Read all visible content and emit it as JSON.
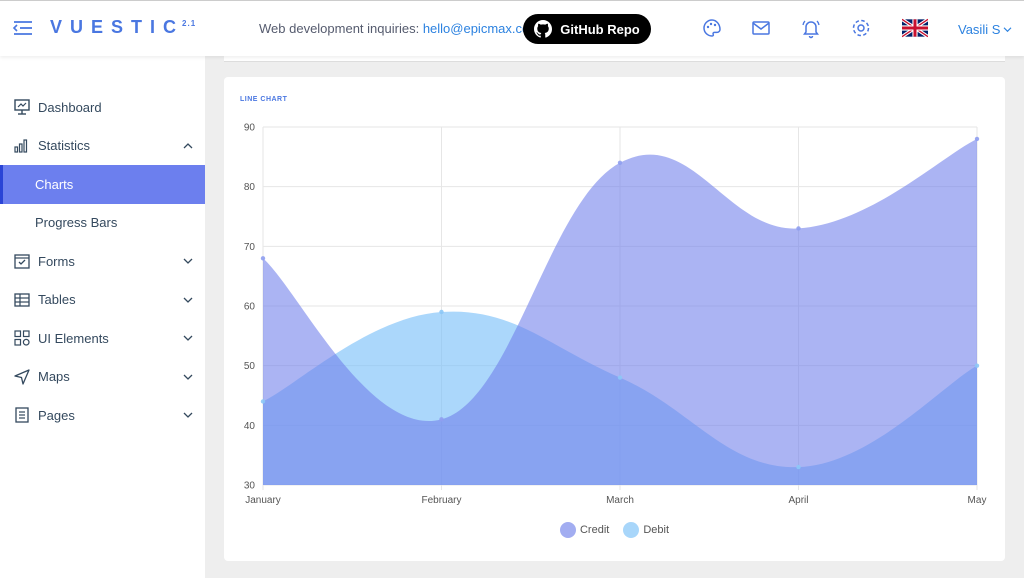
{
  "brand": {
    "name": "VUESTIC",
    "version": "2.1"
  },
  "header": {
    "inquiries_label": "Web development inquiries:",
    "inquiries_email": "hello@epicmax.co",
    "github_label": "GitHub Repo",
    "user_name": "Vasili S",
    "icons": [
      "palette-icon",
      "mail-icon",
      "bell-icon",
      "gear-icon",
      "uk-flag-icon"
    ]
  },
  "sidebar": {
    "items": [
      {
        "label": "Dashboard",
        "icon": "dashboard-icon"
      },
      {
        "label": "Statistics",
        "icon": "statistics-icon",
        "expanded": true
      },
      {
        "label": "Charts",
        "active": true
      },
      {
        "label": "Progress Bars"
      },
      {
        "label": "Forms",
        "icon": "forms-icon"
      },
      {
        "label": "Tables",
        "icon": "tables-icon"
      },
      {
        "label": "UI Elements",
        "icon": "ui-elements-icon"
      },
      {
        "label": "Maps",
        "icon": "maps-icon"
      },
      {
        "label": "Pages",
        "icon": "pages-icon"
      }
    ],
    "active_color": "#6c7fee"
  },
  "card": {
    "title": "LINE CHART"
  },
  "chart_data": {
    "type": "area",
    "title": "",
    "categories": [
      "January",
      "February",
      "March",
      "April",
      "May"
    ],
    "series": [
      {
        "name": "Credit",
        "values": [
          68,
          41,
          84,
          73,
          88
        ],
        "color": "#8f9ff0"
      },
      {
        "name": "Debit",
        "values": [
          44,
          59,
          48,
          33,
          50
        ],
        "color": "#8cc8f7"
      }
    ],
    "ylim": [
      30,
      90
    ],
    "yticks": [
      30,
      40,
      50,
      60,
      70,
      80,
      90
    ],
    "grid": true,
    "legend": "bottom"
  }
}
